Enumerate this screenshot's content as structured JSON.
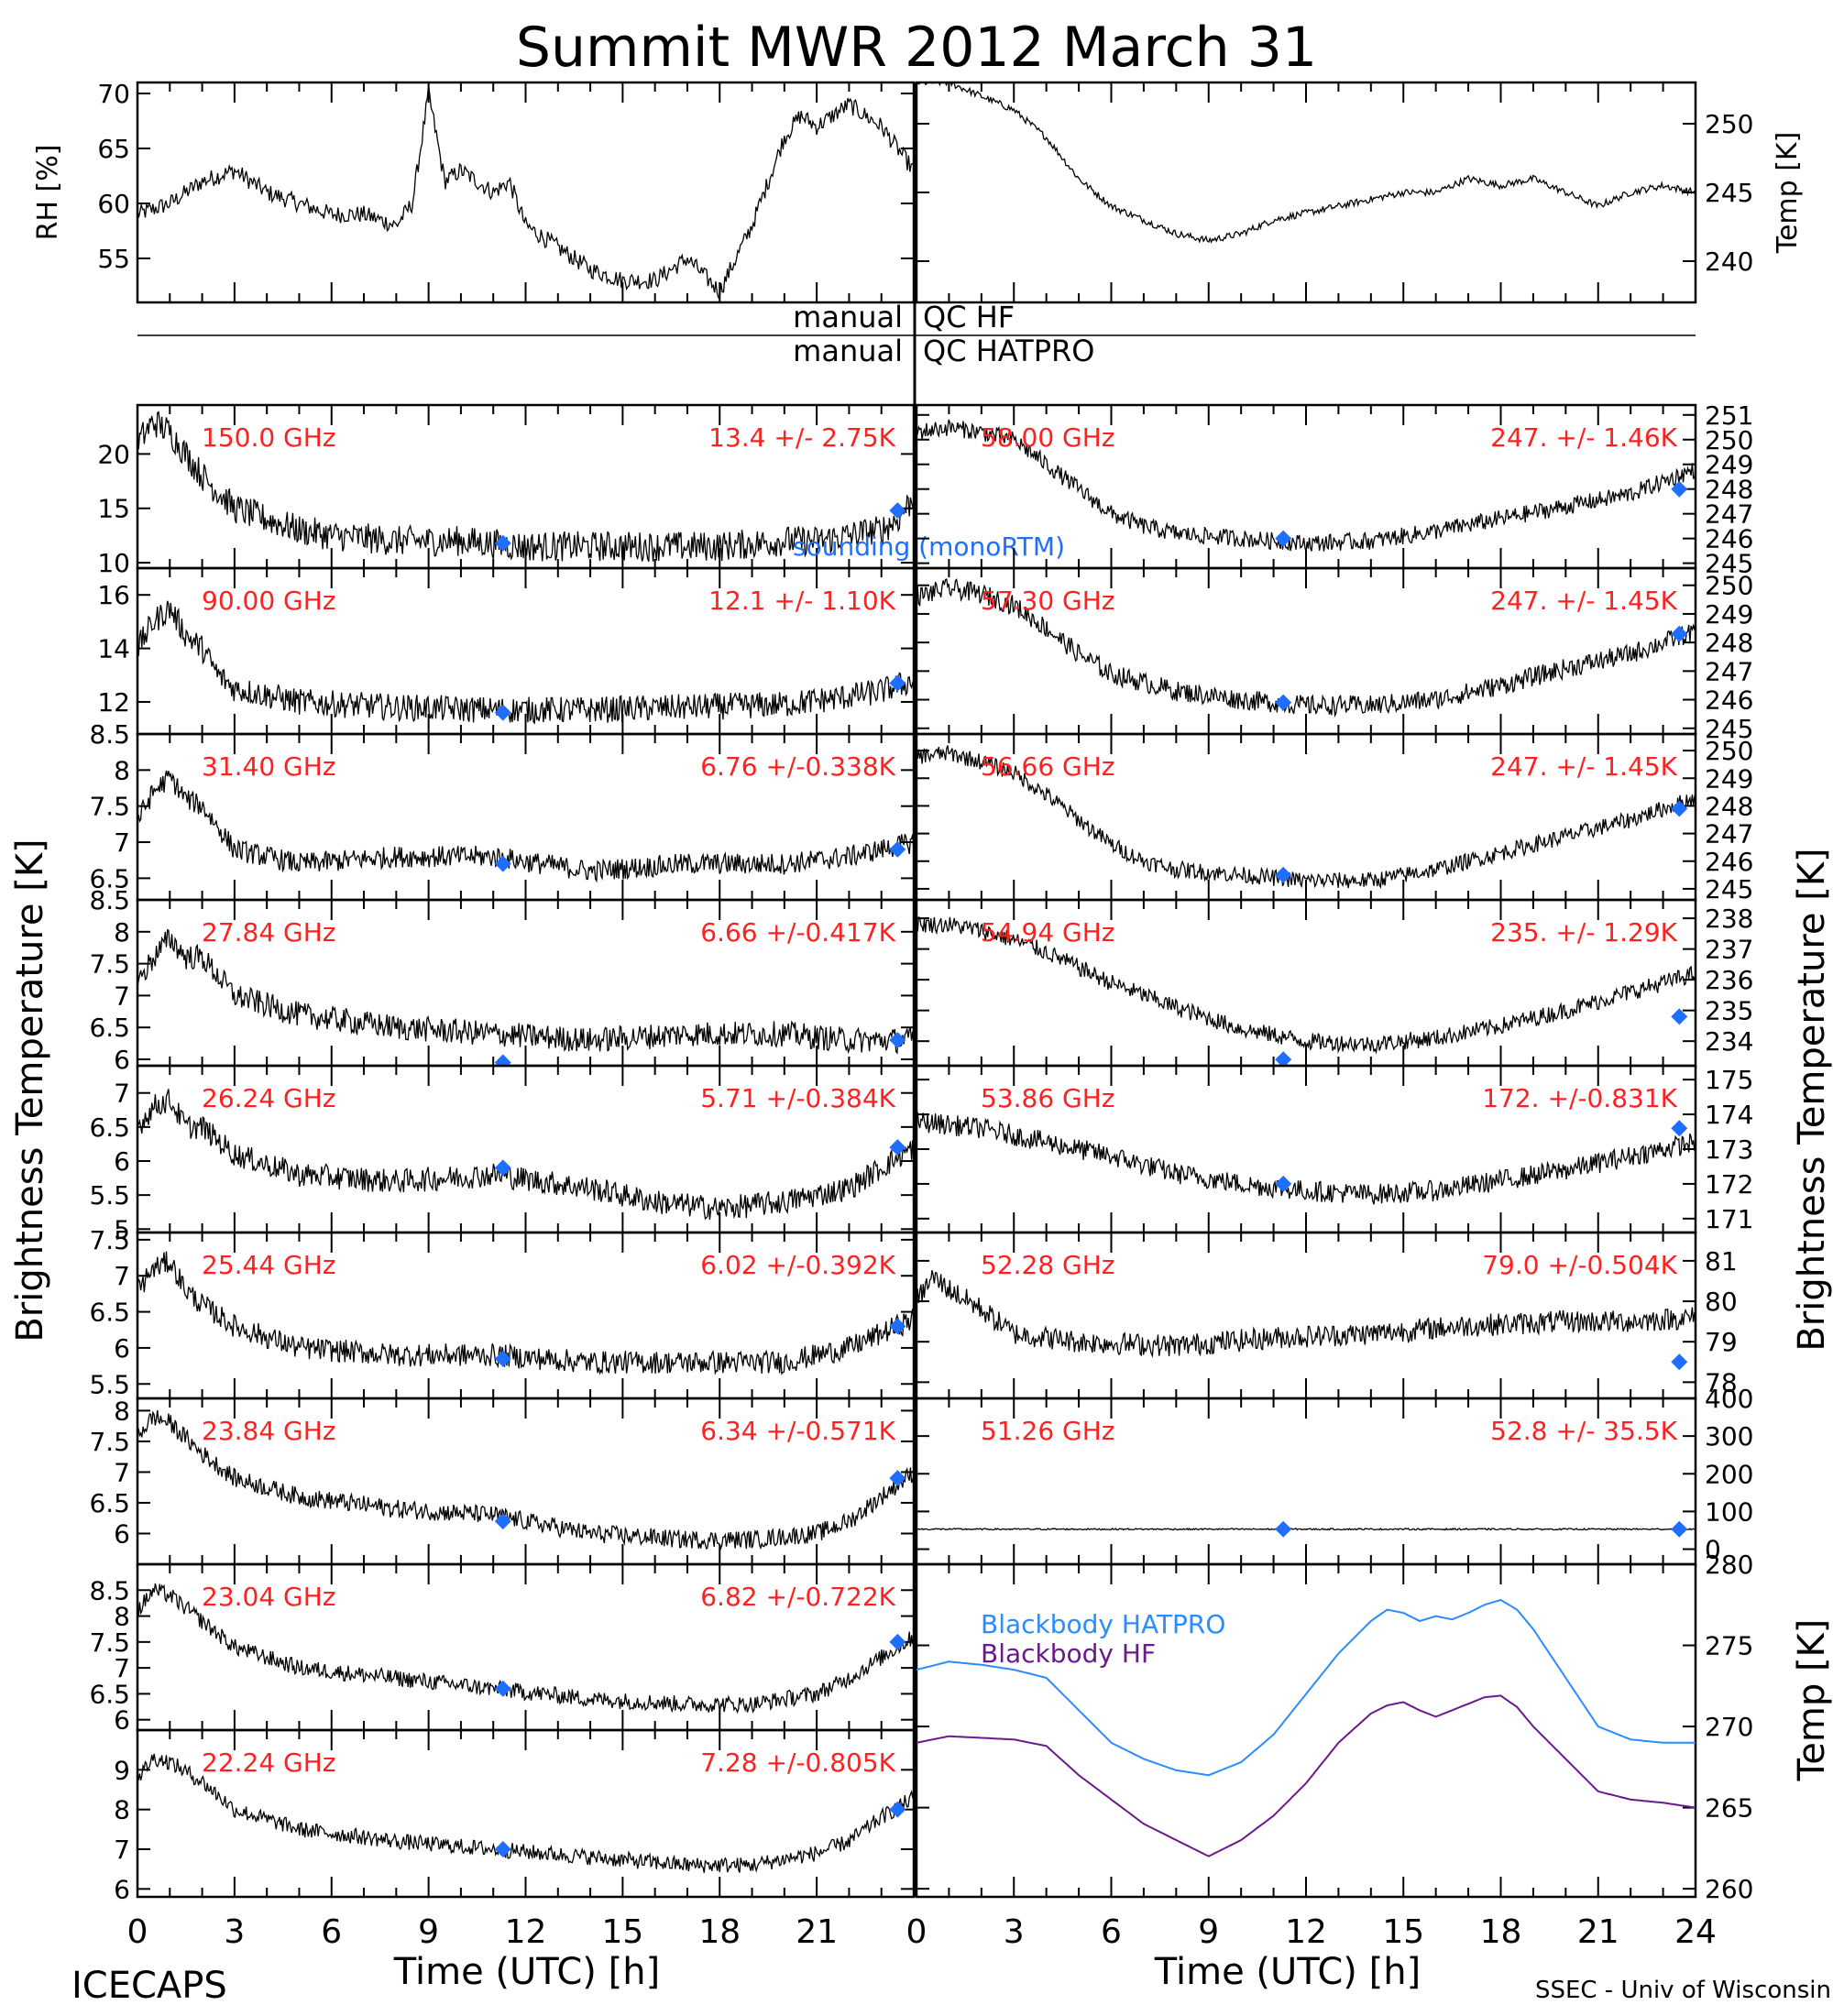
{
  "title": "Summit MWR 2012 March 31",
  "footer": {
    "left": "ICECAPS",
    "right": "SSEC - Univ of Wisconsin"
  },
  "qc": [
    {
      "left": "manual",
      "right": "QC HF"
    },
    {
      "left": "manual",
      "right": "QC HATPRO"
    }
  ],
  "colors": {
    "trace": "#000000",
    "label": "#ff2020",
    "marker": "#1f6fff",
    "hatpro": "#2a8cff",
    "hf": "#6a1a8c"
  },
  "chart_data": [
    {
      "type": "line",
      "id": "rh",
      "ylabel": "RH [%]",
      "ylim": [
        51,
        71
      ],
      "yticks": [
        55,
        60,
        65,
        70
      ],
      "xlim": [
        0,
        24
      ],
      "xticks": [
        0,
        3,
        6,
        9,
        12,
        15,
        18,
        21
      ],
      "x": [
        0,
        1,
        2,
        3,
        4,
        5,
        6,
        7,
        8,
        8.5,
        9,
        9.5,
        10,
        10.5,
        11,
        11.5,
        12,
        13,
        14,
        15,
        16,
        17,
        18,
        19,
        20,
        20.5,
        21,
        22,
        23,
        24
      ],
      "y": [
        59,
        60,
        62,
        63,
        61,
        60,
        59,
        59,
        58,
        60,
        70,
        62,
        63,
        62,
        61,
        62,
        58,
        56,
        54,
        53,
        53,
        55,
        52,
        58,
        66,
        68,
        67,
        69,
        67,
        63
      ]
    },
    {
      "type": "line",
      "id": "temp",
      "ylabel": "Temp [K]",
      "ylim": [
        237,
        253
      ],
      "yticks": [
        240,
        245,
        250
      ],
      "xlim": [
        0,
        24
      ],
      "x": [
        0,
        1,
        2,
        3,
        4,
        5,
        6,
        7,
        8,
        9,
        10,
        11,
        12,
        13,
        14,
        15,
        16,
        17,
        18,
        19,
        20,
        21,
        22,
        23,
        24
      ],
      "y": [
        253,
        253,
        252,
        251,
        249,
        246,
        244,
        243,
        242,
        241.5,
        242,
        243,
        243.5,
        244,
        244.5,
        245,
        245,
        246,
        245.5,
        246,
        245,
        244,
        245,
        245.5,
        245
      ]
    },
    {
      "type": "scatter",
      "id": "ch150",
      "col": "left",
      "freq": "150.0 GHz",
      "stats": "13.4 +/- 2.75K",
      "note": "sounding (monoRTM)",
      "ylim": [
        9.5,
        24.5
      ],
      "yticks": [
        10,
        15,
        20
      ],
      "x": [
        0,
        0.5,
        1,
        1.5,
        2,
        3,
        4,
        5,
        6,
        8,
        10,
        12,
        14,
        16,
        18,
        20,
        21,
        22,
        23,
        23.5,
        24
      ],
      "y": [
        21,
        23,
        22,
        20,
        18,
        15,
        14,
        13,
        12.5,
        12,
        12,
        11.5,
        11.5,
        11.5,
        11.5,
        12,
        12,
        12.5,
        13,
        14,
        16
      ],
      "noise": 1.4,
      "markers": [
        [
          11.3,
          11.8
        ],
        [
          23.5,
          14.8
        ]
      ]
    },
    {
      "type": "scatter",
      "id": "ch90",
      "col": "left",
      "freq": "90.00 GHz",
      "stats": "12.1 +/- 1.10K",
      "ylim": [
        10.8,
        17
      ],
      "yticks": [
        12,
        14,
        16
      ],
      "x": [
        0,
        0.5,
        1,
        1.5,
        2,
        2.5,
        3,
        5,
        8,
        11,
        14,
        17,
        20,
        22,
        23,
        24
      ],
      "y": [
        14,
        15,
        15.5,
        14.5,
        14,
        13,
        12.5,
        12,
        11.8,
        11.7,
        11.7,
        11.8,
        11.9,
        12.2,
        12.4,
        12.8
      ],
      "noise": 0.5,
      "markers": [
        [
          11.3,
          11.6
        ],
        [
          23.5,
          12.7
        ]
      ]
    },
    {
      "type": "scatter",
      "id": "ch31",
      "col": "left",
      "freq": "31.40 GHz",
      "stats": "6.76 +/-0.338K",
      "ylim": [
        6.2,
        8.5
      ],
      "yticks": [
        6.5,
        7.0,
        7.5,
        8.0,
        8.5
      ],
      "x": [
        0,
        0.5,
        1,
        1.5,
        2,
        2.5,
        3,
        5,
        8,
        11,
        14,
        17,
        20,
        22,
        23,
        24
      ],
      "y": [
        7.3,
        7.7,
        7.9,
        7.6,
        7.5,
        7.2,
        6.9,
        6.7,
        6.8,
        6.8,
        6.6,
        6.7,
        6.7,
        6.8,
        6.9,
        7.0
      ],
      "noise": 0.15,
      "markers": [
        [
          11.3,
          6.7
        ],
        [
          23.5,
          6.9
        ]
      ]
    },
    {
      "type": "scatter",
      "id": "ch2784",
      "col": "left",
      "freq": "27.84 GHz",
      "stats": "6.66 +/-0.417K",
      "ylim": [
        5.9,
        8.5
      ],
      "yticks": [
        6.0,
        6.5,
        7.0,
        7.5,
        8.0,
        8.5
      ],
      "x": [
        0,
        0.5,
        1,
        1.5,
        2,
        3,
        5,
        8,
        11,
        14,
        17,
        20,
        22,
        24
      ],
      "y": [
        7.2,
        7.6,
        7.9,
        7.6,
        7.6,
        7.0,
        6.7,
        6.5,
        6.4,
        6.3,
        6.4,
        6.4,
        6.3,
        6.3
      ],
      "noise": 0.2,
      "markers": [
        [
          11.3,
          5.95
        ],
        [
          23.5,
          6.3
        ]
      ]
    },
    {
      "type": "scatter",
      "id": "ch2624",
      "col": "left",
      "freq": "26.24 GHz",
      "stats": "5.71 +/-0.384K",
      "ylim": [
        4.95,
        7.4
      ],
      "yticks": [
        5.0,
        5.5,
        6.0,
        6.5,
        7.0
      ],
      "x": [
        0,
        0.5,
        1,
        1.5,
        2,
        3,
        5,
        8,
        11,
        14,
        16,
        18,
        20,
        22,
        23,
        24
      ],
      "y": [
        6.5,
        6.8,
        6.9,
        6.5,
        6.5,
        6.1,
        5.8,
        5.7,
        5.8,
        5.6,
        5.4,
        5.3,
        5.4,
        5.6,
        5.9,
        6.2
      ],
      "noise": 0.18,
      "markers": [
        [
          11.3,
          5.9
        ],
        [
          23.5,
          6.2
        ]
      ]
    },
    {
      "type": "scatter",
      "id": "ch2544",
      "col": "left",
      "freq": "25.44 GHz",
      "stats": "6.02 +/-0.392K",
      "ylim": [
        5.3,
        7.6
      ],
      "yticks": [
        5.5,
        6.0,
        6.5,
        7.0,
        7.5
      ],
      "x": [
        0,
        0.5,
        1,
        1.5,
        2,
        3,
        5,
        8,
        11,
        14,
        17,
        20,
        22,
        23,
        24
      ],
      "y": [
        6.8,
        7.1,
        7.2,
        6.8,
        6.6,
        6.3,
        6.0,
        5.9,
        5.9,
        5.8,
        5.8,
        5.8,
        6.0,
        6.2,
        6.4
      ],
      "noise": 0.16,
      "markers": [
        [
          11.3,
          5.85
        ],
        [
          23.5,
          6.3
        ]
      ]
    },
    {
      "type": "scatter",
      "id": "ch2384",
      "col": "left",
      "freq": "23.84 GHz",
      "stats": "6.34 +/-0.571K",
      "ylim": [
        5.5,
        8.2
      ],
      "yticks": [
        6.0,
        6.5,
        7.0,
        7.5,
        8.0
      ],
      "x": [
        0,
        0.5,
        1,
        2,
        3,
        5,
        8,
        11,
        14,
        17,
        19,
        21,
        22,
        23,
        24
      ],
      "y": [
        7.6,
        7.9,
        7.8,
        7.3,
        6.9,
        6.6,
        6.4,
        6.3,
        6.0,
        5.9,
        5.9,
        6.0,
        6.2,
        6.6,
        7.0
      ],
      "noise": 0.15,
      "markers": [
        [
          11.3,
          6.2
        ],
        [
          23.5,
          6.9
        ]
      ]
    },
    {
      "type": "scatter",
      "id": "ch2304",
      "col": "left",
      "freq": "23.04 GHz",
      "stats": "6.82 +/-0.722K",
      "ylim": [
        5.8,
        9.0
      ],
      "yticks": [
        6.0,
        6.5,
        7.0,
        7.5,
        8.0,
        8.5
      ],
      "x": [
        0,
        0.5,
        1,
        2,
        3,
        5,
        8,
        11,
        14,
        17,
        19,
        21,
        22,
        23,
        24
      ],
      "y": [
        8.1,
        8.5,
        8.4,
        7.9,
        7.4,
        7.0,
        6.8,
        6.6,
        6.4,
        6.3,
        6.3,
        6.5,
        6.8,
        7.2,
        7.6
      ],
      "noise": 0.16,
      "markers": [
        [
          11.3,
          6.6
        ],
        [
          23.5,
          7.5
        ]
      ]
    },
    {
      "type": "scatter",
      "id": "ch2224",
      "col": "left",
      "freq": "22.24 GHz",
      "stats": "7.28 +/-0.805K",
      "ylim": [
        5.8,
        10
      ],
      "yticks": [
        6,
        7,
        8,
        9
      ],
      "x": [
        0,
        0.5,
        1,
        2,
        3,
        5,
        8,
        11,
        14,
        17,
        19,
        21,
        22,
        23,
        24
      ],
      "y": [
        8.8,
        9.3,
        9.2,
        8.7,
        8.0,
        7.5,
        7.2,
        7.0,
        6.8,
        6.6,
        6.6,
        6.9,
        7.2,
        7.8,
        8.3
      ],
      "noise": 0.2,
      "markers": [
        [
          11.3,
          7.0
        ],
        [
          23.5,
          8.0
        ]
      ]
    },
    {
      "type": "scatter",
      "id": "ch5800",
      "col": "right",
      "freq": "58.00 GHz",
      "stats": "247. +/- 1.46K",
      "ylim": [
        244.8,
        251.4
      ],
      "yticks": [
        245,
        246,
        247,
        248,
        249,
        250,
        251
      ],
      "x": [
        0,
        1,
        2,
        3,
        4,
        5,
        6,
        7,
        8,
        10,
        12,
        14,
        16,
        18,
        20,
        22,
        23,
        24
      ],
      "y": [
        250.3,
        250.5,
        250.3,
        250,
        249,
        248,
        247,
        246.5,
        246.2,
        246,
        245.8,
        245.9,
        246.3,
        246.8,
        247.3,
        247.8,
        248.3,
        248.8
      ],
      "noise": 0.35,
      "markers": [
        [
          11.3,
          246
        ],
        [
          23.5,
          248
        ]
      ]
    },
    {
      "type": "scatter",
      "id": "ch5730",
      "col": "right",
      "freq": "57.30 GHz",
      "stats": "247. +/- 1.45K",
      "ylim": [
        244.8,
        250.6
      ],
      "yticks": [
        245,
        246,
        247,
        248,
        249,
        250
      ],
      "x": [
        0,
        1,
        2,
        3,
        4,
        5,
        6,
        8,
        10,
        12,
        14,
        16,
        18,
        20,
        22,
        23,
        24
      ],
      "y": [
        249.6,
        249.9,
        249.7,
        249.3,
        248.5,
        247.6,
        246.9,
        246.3,
        246,
        245.8,
        245.8,
        246,
        246.5,
        247.1,
        247.6,
        248,
        248.4
      ],
      "noise": 0.35,
      "markers": [
        [
          11.3,
          245.9
        ],
        [
          23.5,
          248.3
        ]
      ]
    },
    {
      "type": "scatter",
      "id": "ch5666",
      "col": "right",
      "freq": "56.66 GHz",
      "stats": "247. +/- 1.45K",
      "ylim": [
        244.6,
        250.6
      ],
      "yticks": [
        245,
        246,
        247,
        248,
        249,
        250
      ],
      "x": [
        0,
        1,
        2,
        3,
        4,
        5,
        6,
        7,
        8,
        10,
        12,
        14,
        16,
        18,
        20,
        22,
        23,
        24
      ],
      "y": [
        249.8,
        249.9,
        249.6,
        249.2,
        248.4,
        247.5,
        246.6,
        246,
        245.7,
        245.5,
        245.3,
        245.3,
        245.7,
        246.3,
        246.9,
        247.5,
        247.9,
        248.3
      ],
      "noise": 0.3,
      "markers": [
        [
          11.3,
          245.5
        ],
        [
          23.5,
          247.9
        ]
      ]
    },
    {
      "type": "scatter",
      "id": "ch5494",
      "col": "right",
      "freq": "54.94 GHz",
      "stats": "235. +/- 1.29K",
      "ylim": [
        233.2,
        238.6
      ],
      "yticks": [
        234,
        235,
        236,
        237,
        238
      ],
      "x": [
        0,
        1,
        2,
        3,
        4,
        5,
        6,
        8,
        10,
        12,
        14,
        16,
        18,
        20,
        22,
        23,
        24
      ],
      "y": [
        237.8,
        237.8,
        237.6,
        237.3,
        236.9,
        236.4,
        235.9,
        235.1,
        234.4,
        234.0,
        233.9,
        234.1,
        234.5,
        235.0,
        235.6,
        235.9,
        236.2
      ],
      "noise": 0.28,
      "markers": [
        [
          11.3,
          233.4
        ],
        [
          23.5,
          234.8
        ]
      ]
    },
    {
      "type": "scatter",
      "id": "ch5386",
      "col": "right",
      "freq": "53.86 GHz",
      "stats": "172. +/-0.831K",
      "ylim": [
        170.6,
        175.4
      ],
      "yticks": [
        171,
        172,
        173,
        174,
        175
      ],
      "x": [
        0,
        2,
        4,
        6,
        8,
        10,
        12,
        14,
        16,
        18,
        20,
        22,
        24
      ],
      "y": [
        173.8,
        173.6,
        173.2,
        172.8,
        172.3,
        172.0,
        171.8,
        171.7,
        171.8,
        172.1,
        172.4,
        172.8,
        173.2
      ],
      "noise": 0.3,
      "markers": [
        [
          11.3,
          172
        ],
        [
          23.5,
          173.6
        ]
      ]
    },
    {
      "type": "scatter",
      "id": "ch5228",
      "col": "right",
      "freq": "52.28 GHz",
      "stats": "79.0 +/-0.504K",
      "ylim": [
        77.6,
        81.7
      ],
      "yticks": [
        78,
        79,
        80,
        81
      ],
      "x": [
        0,
        0.5,
        1,
        2,
        3,
        5,
        8,
        11,
        14,
        17,
        20,
        22,
        24
      ],
      "y": [
        80.0,
        80.6,
        80.3,
        79.8,
        79.2,
        79.0,
        78.9,
        79.1,
        79.2,
        79.4,
        79.5,
        79.5,
        79.6
      ],
      "noise": 0.28,
      "markers": [
        [
          23.5,
          78.5
        ]
      ]
    },
    {
      "type": "scatter",
      "id": "ch5126",
      "col": "right",
      "freq": "51.26 GHz",
      "stats": "52.8 +/- 35.5K",
      "ylim": [
        -40,
        400
      ],
      "yticks": [
        0,
        100,
        200,
        300,
        400
      ],
      "x": [
        0,
        24
      ],
      "y": [
        53,
        53
      ],
      "noise": 2,
      "markers": [
        [
          11.3,
          53
        ],
        [
          23.5,
          53
        ]
      ]
    },
    {
      "type": "line",
      "id": "blackbody",
      "ylabel": "Temp [K]",
      "ylim": [
        259.5,
        280
      ],
      "yticks": [
        260,
        265,
        270,
        275,
        280
      ],
      "xlim": [
        0,
        24
      ],
      "xticks": [
        0,
        3,
        6,
        9,
        12,
        15,
        18,
        21,
        24
      ],
      "series": [
        {
          "name": "Blackbody HATPRO",
          "x": [
            0,
            1,
            2,
            3,
            4,
            5,
            6,
            7,
            8,
            9,
            10,
            11,
            12,
            13,
            14,
            14.5,
            15,
            15.5,
            16,
            16.5,
            17,
            17.5,
            18,
            18.5,
            19,
            20,
            21,
            22,
            23,
            24
          ],
          "y": [
            273.5,
            274,
            273.8,
            273.5,
            273,
            271,
            269,
            268,
            267.3,
            267,
            267.8,
            269.5,
            272,
            274.5,
            276.5,
            277.2,
            277,
            276.5,
            276.8,
            276.6,
            277,
            277.5,
            277.8,
            277.2,
            276,
            273,
            270,
            269.2,
            269,
            269
          ],
          "color": "#2a8cff"
        },
        {
          "name": "Blackbody HF",
          "x": [
            0,
            1,
            2,
            3,
            4,
            5,
            6,
            7,
            8,
            9,
            10,
            11,
            12,
            13,
            14,
            14.5,
            15,
            15.5,
            16,
            16.5,
            17,
            17.5,
            18,
            18.5,
            19,
            20,
            21,
            22,
            23,
            24
          ],
          "y": [
            269,
            269.4,
            269.3,
            269.2,
            268.8,
            267,
            265.5,
            264,
            263,
            262,
            263,
            264.5,
            266.5,
            269,
            270.8,
            271.3,
            271.5,
            271,
            270.6,
            271,
            271.4,
            271.8,
            271.9,
            271.2,
            270,
            268,
            266,
            265.5,
            265.3,
            265
          ]
        }
      ]
    }
  ],
  "axis_labels": {
    "left_bt": "Brightness Temperature [K]",
    "right_bt": "Brightness Temperature [K]",
    "xlabel_left": "Time (UTC) [h]",
    "xlabel_right": "Time (UTC) [h]"
  }
}
